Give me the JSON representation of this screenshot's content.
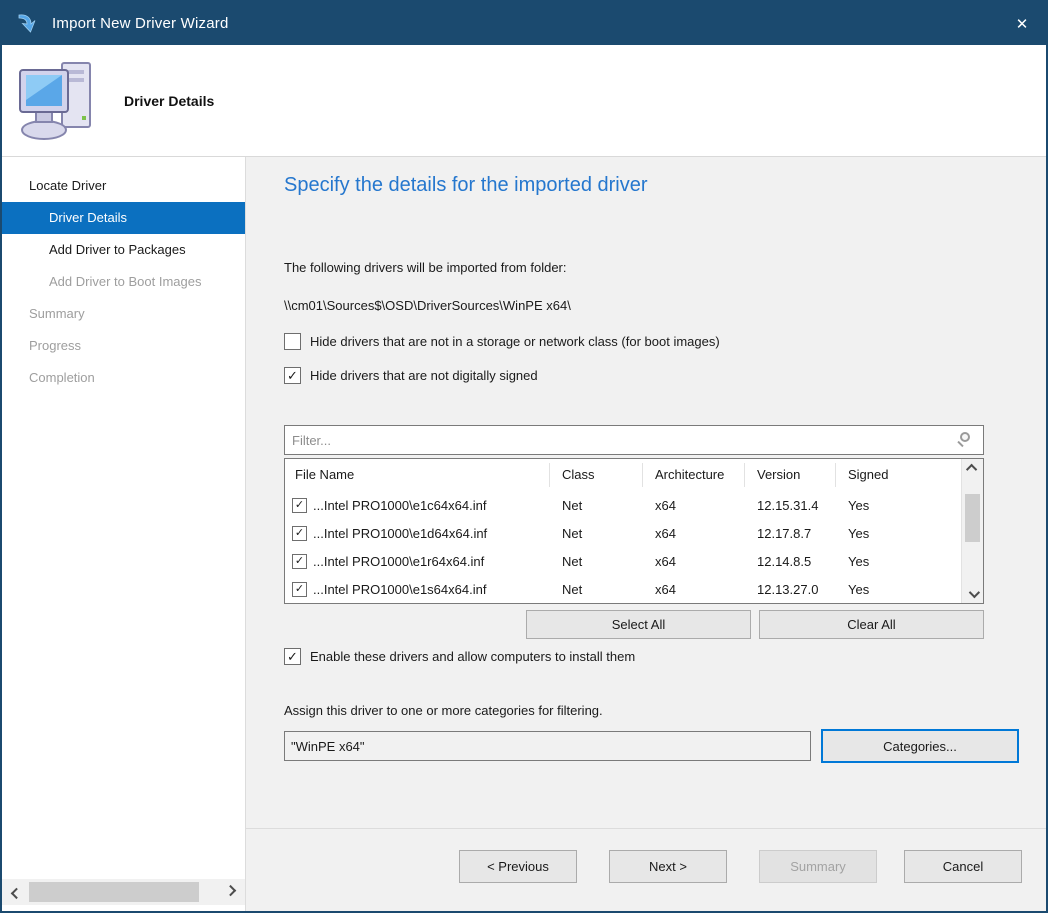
{
  "window": {
    "title": "Import New Driver Wizard"
  },
  "icons": {
    "check": "✓",
    "close": "✕"
  },
  "header": {
    "title": "Driver Details"
  },
  "sidebar": {
    "items": [
      {
        "label": "Locate Driver"
      },
      {
        "label": "Driver Details"
      },
      {
        "label": "Add Driver to Packages"
      },
      {
        "label": "Add Driver to Boot Images"
      },
      {
        "label": "Summary"
      },
      {
        "label": "Progress"
      },
      {
        "label": "Completion"
      }
    ]
  },
  "content": {
    "heading": "Specify the details for the imported driver",
    "folder_intro": "The following drivers will be imported from folder:",
    "folder_path": "\\\\cm01\\Sources$\\OSD\\DriverSources\\WinPE x64\\",
    "hide_class_label": "Hide drivers that are not in a storage or network class (for boot images)",
    "hide_unsigned_label": "Hide drivers that are not digitally signed",
    "filter_placeholder": "Filter...",
    "table": {
      "columns": [
        "File Name",
        "Class",
        "Architecture",
        "Version",
        "Signed"
      ],
      "rows": [
        {
          "file": "...Intel PRO1000\\e1c64x64.inf",
          "class": "Net",
          "arch": "x64",
          "version": "12.15.31.4",
          "signed": "Yes"
        },
        {
          "file": "...Intel PRO1000\\e1d64x64.inf",
          "class": "Net",
          "arch": "x64",
          "version": "12.17.8.7",
          "signed": "Yes"
        },
        {
          "file": "...Intel PRO1000\\e1r64x64.inf",
          "class": "Net",
          "arch": "x64",
          "version": "12.14.8.5",
          "signed": "Yes"
        },
        {
          "file": "...Intel PRO1000\\e1s64x64.inf",
          "class": "Net",
          "arch": "x64",
          "version": "12.13.27.0",
          "signed": "Yes"
        }
      ]
    },
    "select_all_label": "Select All",
    "clear_all_label": "Clear All",
    "enable_label": "Enable these drivers and allow computers to install them",
    "assign_label": "Assign this driver to one or more categories for filtering.",
    "category_value": "\"WinPE x64\"",
    "categories_button": "Categories..."
  },
  "footer": {
    "previous": "< Previous",
    "next": "Next >",
    "summary": "Summary",
    "cancel": "Cancel"
  },
  "colors": {
    "titlebar": "#1b4a6f",
    "selection": "#0b70c0",
    "heading": "#2577ce",
    "focus_border": "#0078d7"
  }
}
